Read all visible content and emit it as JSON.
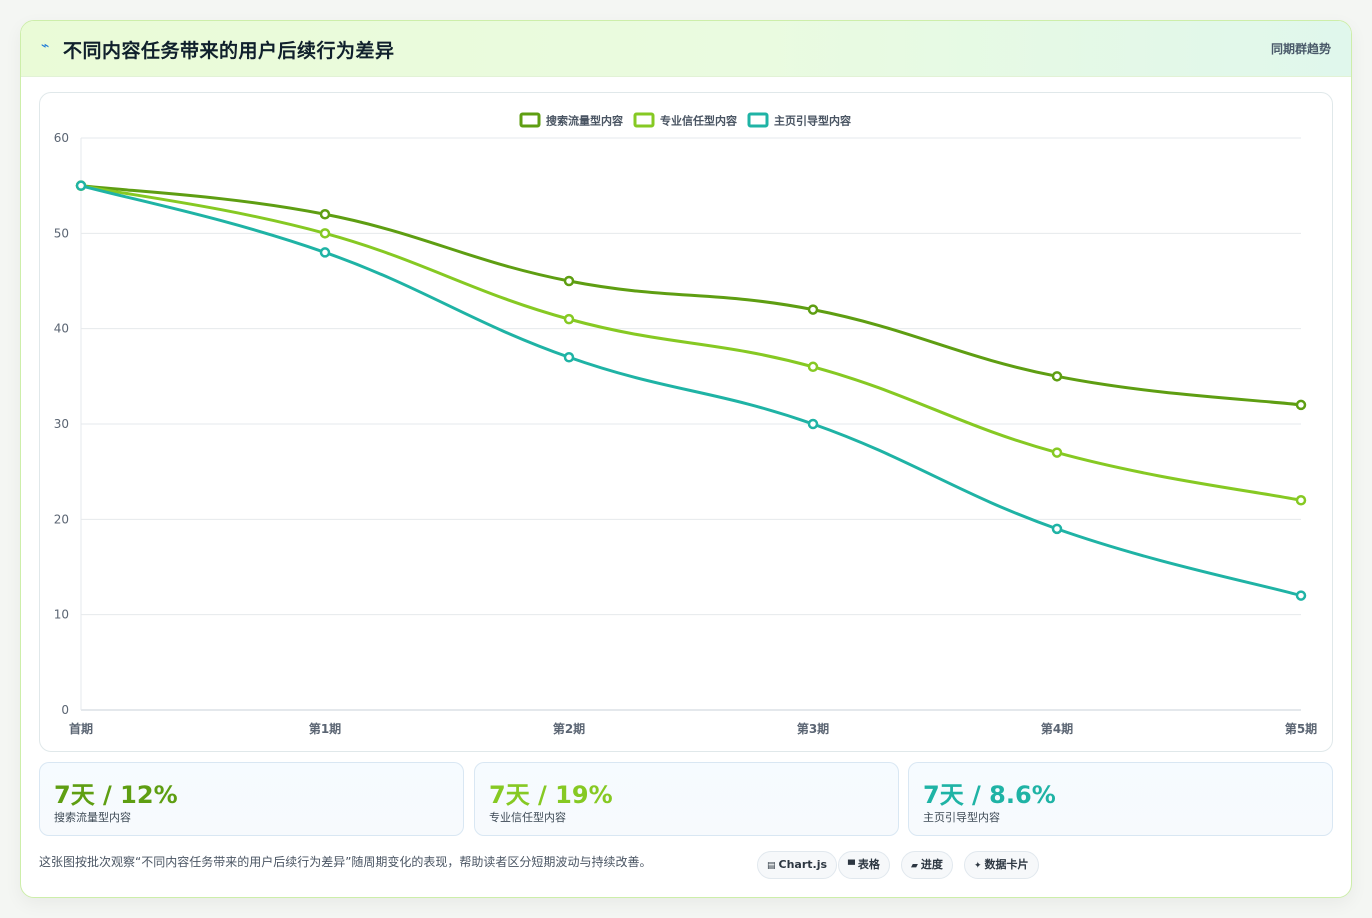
{
  "header": {
    "icon": "bolt-icon",
    "title": "不同内容任务带来的用户后续行为差异",
    "subtitle": "同期群趋势"
  },
  "chart_data": {
    "type": "line",
    "categories": [
      "首期",
      "第1期",
      "第2期",
      "第3期",
      "第4期",
      "第5期"
    ],
    "series": [
      {
        "name": "搜索流量型内容",
        "color": "#5e9e12",
        "values": [
          55,
          52,
          45,
          42,
          35,
          32
        ]
      },
      {
        "name": "专业信任型内容",
        "color": "#86c923",
        "values": [
          55,
          50,
          41,
          36,
          27,
          22
        ]
      },
      {
        "name": "主页引导型内容",
        "color": "#1fb3a5",
        "values": [
          55,
          48,
          37,
          30,
          19,
          12
        ]
      }
    ],
    "ylim": [
      0,
      60
    ],
    "yticks": [
      0,
      10,
      20,
      30,
      40,
      50,
      60
    ],
    "grid": true,
    "legend": "top-center"
  },
  "kpis": [
    {
      "value": "7天 / 12%",
      "label": "搜索流量型内容",
      "color": "#5e9e12"
    },
    {
      "value": "7天 / 19%",
      "label": "专业信任型内容",
      "color": "#86c923"
    },
    {
      "value": "7天 / 8.6%",
      "label": "主页引导型内容",
      "color": "#1fb3a5"
    }
  ],
  "footer": {
    "note": "这张图按批次观察“不同内容任务带来的用户后续行为差异”随周期变化的表现，帮助读者区分短期波动与持续改善。",
    "tags": [
      {
        "icon": "chart-icon",
        "label": "Chart.js"
      },
      {
        "icon": "table-icon",
        "label": "表格"
      },
      {
        "icon": "progress-icon",
        "label": "进度"
      },
      {
        "icon": "card-icon",
        "label": "数据卡片"
      }
    ]
  }
}
